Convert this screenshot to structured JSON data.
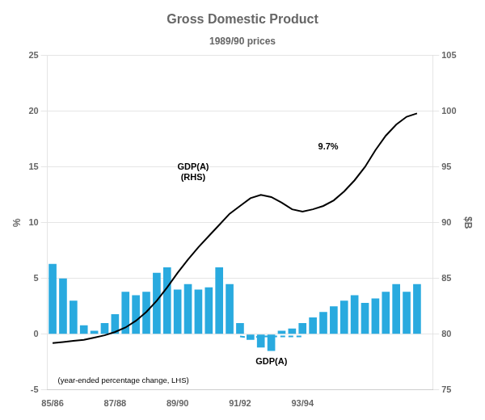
{
  "chart_data": {
    "type": "bar",
    "title": "Gross Domestic Product",
    "subtitle": "1989/90 prices",
    "y_label": "%",
    "y2_label": "$B",
    "x": [
      0,
      1,
      2,
      3,
      4,
      5,
      6,
      7,
      8,
      9,
      10,
      11,
      12,
      13,
      14,
      15,
      16,
      17,
      18,
      19,
      20,
      21,
      22,
      23,
      24,
      25,
      26,
      27,
      28,
      29,
      30,
      31,
      32,
      33,
      34,
      35
    ],
    "xlim": [
      -0.5,
      36.5
    ],
    "xticks": [
      {
        "value": 0,
        "label": "85/86"
      },
      {
        "value": 6,
        "label": "87/88"
      },
      {
        "value": 12,
        "label": "89/90"
      },
      {
        "value": 18,
        "label": "91/92"
      },
      {
        "value": 24,
        "label": "93/94"
      },
      {
        "value": 30,
        "label": null
      }
    ],
    "ylim": [
      -5,
      25
    ],
    "yticks": [
      -5,
      0,
      5,
      10,
      15,
      20,
      25
    ],
    "y2lim": [
      75,
      105
    ],
    "y2ticks": [
      75,
      80,
      85,
      90,
      95,
      100,
      105
    ],
    "grid": "y",
    "series": [
      {
        "type": "bar",
        "color": "#29aadf",
        "values": [
          6.3,
          5.0,
          3.0,
          0.8,
          0.3,
          1.0,
          1.8,
          3.8,
          3.5,
          3.8,
          5.5,
          6.0,
          4.0,
          4.5,
          4.0,
          4.2,
          6.0,
          4.5,
          1.0,
          -0.5,
          -1.2,
          -1.5,
          0.3,
          0.5,
          1.0,
          1.5,
          2.0,
          2.5,
          3.0,
          3.5,
          2.8,
          3.2,
          3.8,
          4.5,
          3.8,
          4.5
        ]
      },
      {
        "type": "line",
        "color": "#000000",
        "axis": "y2",
        "values": [
          79.2,
          79.3,
          79.4,
          79.5,
          79.7,
          79.9,
          80.2,
          80.6,
          81.2,
          82.0,
          83.0,
          84.2,
          85.5,
          86.7,
          87.8,
          88.8,
          89.8,
          90.8,
          91.5,
          92.2,
          92.5,
          92.3,
          91.8,
          91.2,
          91.0,
          91.2,
          91.5,
          92.0,
          92.8,
          93.8,
          95.0,
          96.5,
          97.8,
          98.8,
          99.5,
          99.8
        ]
      },
      {
        "type": "line",
        "color": "#29aadf",
        "line_style": "dashed",
        "x": [
          18,
          19,
          20,
          21,
          22,
          23,
          24
        ],
        "values": [
          -0.2,
          -0.3,
          -0.2,
          -0.2,
          -0.2,
          -0.2,
          -0.2
        ]
      }
    ],
    "annotations": [
      {
        "text": "GDP(A)\n(RHS)",
        "x": 13.5,
        "y": 14.5
      },
      {
        "text": "GDP(A)",
        "x": 19.5,
        "y": -2.5
      },
      {
        "text": "(year-ended percentage change, LHS)",
        "x": 0.5,
        "y": -4.2
      },
      {
        "text": "9.7%",
        "x": 25.5,
        "y": 16.8
      }
    ]
  }
}
